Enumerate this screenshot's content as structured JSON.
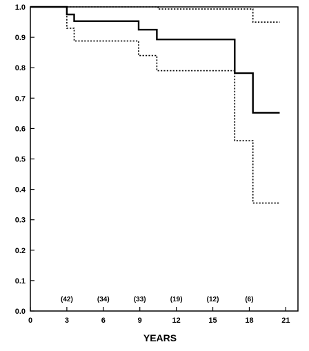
{
  "chart_data": {
    "type": "line",
    "xlabel": "YEARS",
    "ylabel": "",
    "xlim": [
      0,
      22
    ],
    "ylim": [
      0,
      1.0
    ],
    "x_ticks": [
      0,
      3,
      6,
      9,
      12,
      15,
      18,
      21
    ],
    "y_ticks": [
      0.0,
      0.1,
      0.2,
      0.3,
      0.4,
      0.5,
      0.6,
      0.7,
      0.8,
      0.9,
      1.0
    ],
    "x_tick_labels": [
      "0",
      "3",
      "6",
      "9",
      "12",
      "15",
      "18",
      "21"
    ],
    "y_tick_labels": [
      "0.0",
      "0.1",
      "0.2",
      "0.3",
      "0.4",
      "0.5",
      "0.6",
      "0.7",
      "0.8",
      "0.9",
      "1.0"
    ],
    "numbers_at_risk": [
      {
        "x": 3,
        "label": "(42)"
      },
      {
        "x": 6,
        "label": "(34)"
      },
      {
        "x": 9,
        "label": "(33)"
      },
      {
        "x": 12,
        "label": "(19)"
      },
      {
        "x": 15,
        "label": "(12)"
      },
      {
        "x": 18,
        "label": "(6)"
      }
    ],
    "grid": false,
    "legend": "none",
    "series": [
      {
        "style": "solid",
        "color": "#000000",
        "points": [
          [
            0,
            1.0
          ],
          [
            3.0,
            1.0
          ],
          [
            3.0,
            0.975
          ],
          [
            3.6,
            0.975
          ],
          [
            3.6,
            0.953
          ],
          [
            8.9,
            0.953
          ],
          [
            8.9,
            0.925
          ],
          [
            10.4,
            0.925
          ],
          [
            10.4,
            0.893
          ],
          [
            16.8,
            0.893
          ],
          [
            16.8,
            0.782
          ],
          [
            18.3,
            0.782
          ],
          [
            18.3,
            0.652
          ],
          [
            20.5,
            0.652
          ]
        ]
      },
      {
        "style": "dotted",
        "color": "#000000",
        "points": [
          [
            0,
            1.0
          ],
          [
            10.5,
            1.0
          ],
          [
            10.5,
            0.993
          ],
          [
            18.3,
            0.993
          ],
          [
            18.3,
            0.95
          ],
          [
            20.5,
            0.95
          ]
        ]
      },
      {
        "style": "dotted",
        "color": "#000000",
        "points": [
          [
            0,
            1.0
          ],
          [
            3.0,
            1.0
          ],
          [
            3.0,
            0.93
          ],
          [
            3.6,
            0.93
          ],
          [
            3.6,
            0.888
          ],
          [
            8.9,
            0.888
          ],
          [
            8.9,
            0.84
          ],
          [
            10.4,
            0.84
          ],
          [
            10.4,
            0.79
          ],
          [
            16.8,
            0.79
          ],
          [
            16.8,
            0.56
          ],
          [
            18.3,
            0.56
          ],
          [
            18.3,
            0.355
          ],
          [
            20.5,
            0.355
          ]
        ]
      }
    ]
  }
}
